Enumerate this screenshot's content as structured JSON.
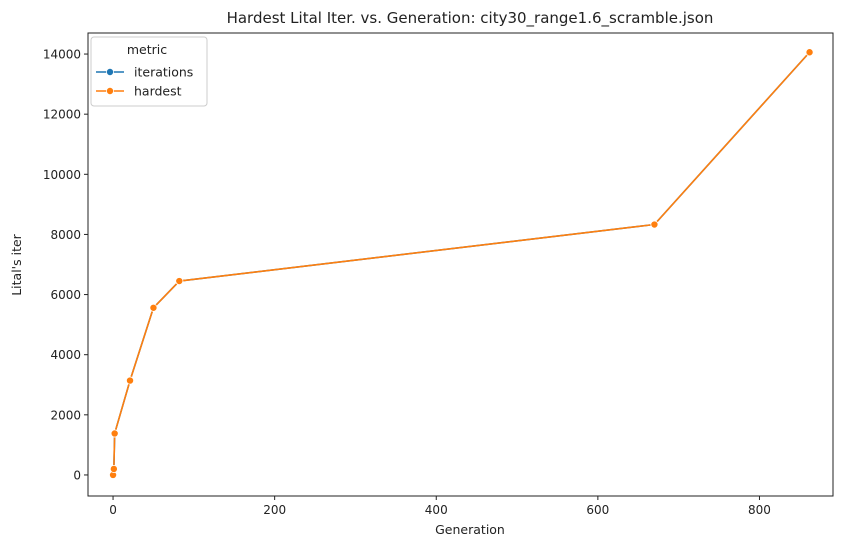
{
  "chart_data": {
    "type": "line",
    "title": "Hardest Lital Iter. vs. Generation: city30_range1.6_scramble.json",
    "xlabel": "Generation",
    "ylabel": "Lital's iter",
    "xlim": [
      -31,
      891
    ],
    "ylim": [
      -700,
      14700
    ],
    "xticks": [
      0,
      200,
      400,
      600,
      800
    ],
    "yticks": [
      0,
      2000,
      4000,
      6000,
      8000,
      10000,
      12000,
      14000
    ],
    "grid": false,
    "legend": {
      "title": "metric",
      "placement": "top-left"
    },
    "series": [
      {
        "name": "iterations",
        "color": "#1f77b4",
        "marker": "circle",
        "x": [
          0,
          1,
          2,
          21,
          50,
          82,
          670,
          862
        ],
        "y": [
          0,
          200,
          1380,
          3140,
          5560,
          6450,
          8330,
          14060
        ]
      },
      {
        "name": "hardest",
        "color": "#ff7f0e",
        "marker": "circle",
        "x": [
          0,
          1,
          2,
          21,
          50,
          82,
          670,
          862
        ],
        "y": [
          0,
          200,
          1380,
          3140,
          5560,
          6450,
          8330,
          14060
        ]
      }
    ]
  }
}
